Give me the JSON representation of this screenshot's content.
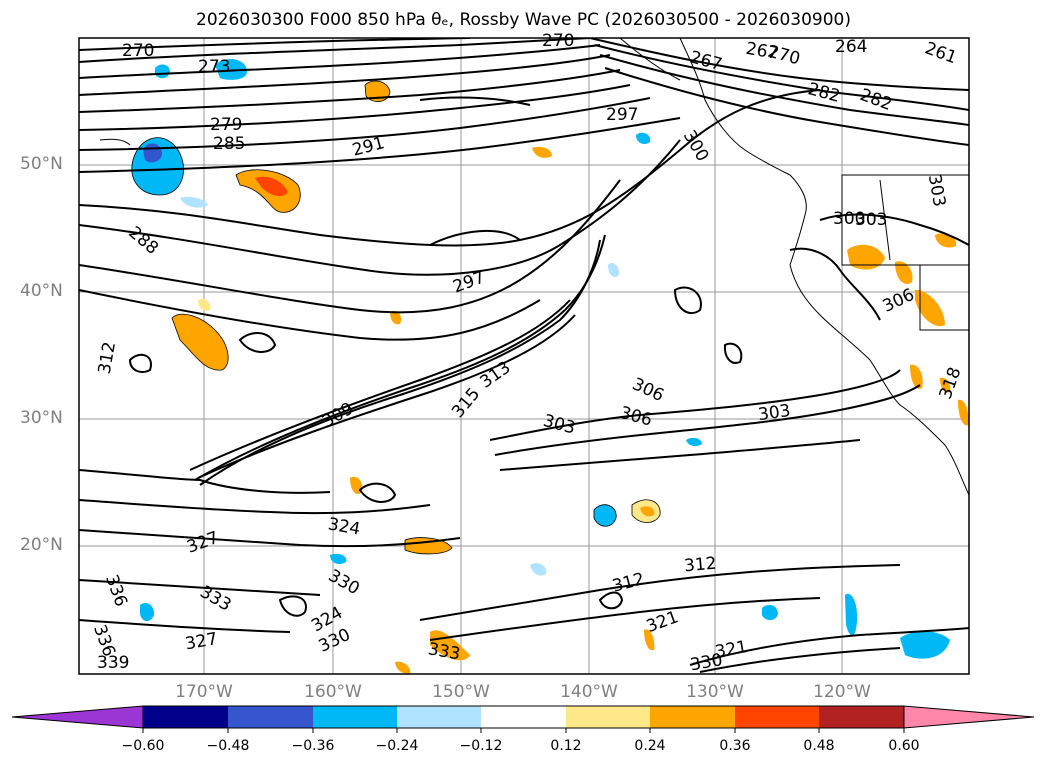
{
  "title": "2026030300 F000 850 hPa θₑ, Rossby Wave PC (2026030500 - 2026030900)",
  "map": {
    "projection": "lat-lon",
    "lat_ticks": [
      "50°N",
      "40°N",
      "30°N",
      "20°N"
    ],
    "lon_ticks": [
      "170°W",
      "160°W",
      "150°W",
      "140°W",
      "130°W",
      "120°W"
    ],
    "contour_field": "850 hPa theta-e (K)",
    "contour_labels": [
      "270",
      "273",
      "279",
      "285",
      "288",
      "291",
      "297",
      "297",
      "300",
      "303",
      "306",
      "306",
      "303",
      "303",
      "309",
      "313",
      "312",
      "315",
      "318",
      "321",
      "324",
      "324",
      "327",
      "327",
      "330",
      "330",
      "333",
      "333",
      "336",
      "336",
      "339",
      "312",
      "312",
      "321",
      "330",
      "270",
      "264",
      "267",
      "270",
      "282",
      "282",
      "261",
      "267",
      "300",
      "303",
      "306"
    ],
    "shading_field": "Rossby Wave PC"
  },
  "colorbar": {
    "ticks": [
      "−0.60",
      "−0.48",
      "−0.36",
      "−0.24",
      "−0.12",
      "0.12",
      "0.24",
      "0.36",
      "0.48",
      "0.60"
    ],
    "colors": [
      "#9b35d3",
      "#00008b",
      "#3555cf",
      "#00b8f5",
      "#b0e3ff",
      "#ffffff",
      "#ffe88a",
      "#ffa500",
      "#ff4500",
      "#b22222",
      "#ff88aa",
      "#ff88aa"
    ],
    "extend": "both"
  }
}
